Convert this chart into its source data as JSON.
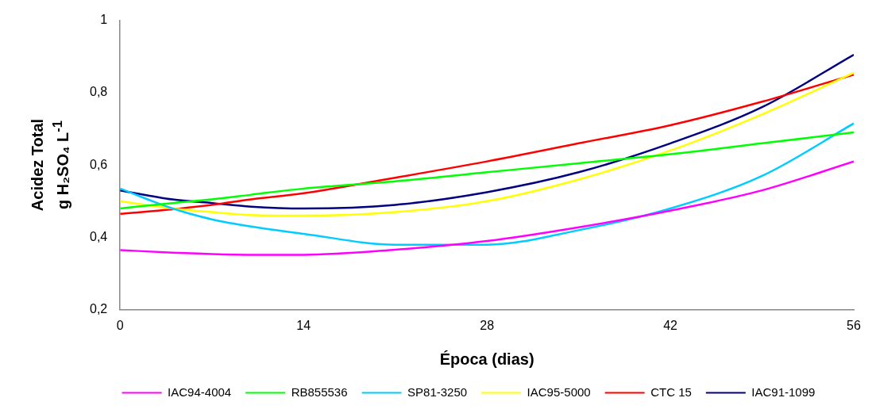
{
  "chart_data": {
    "type": "line",
    "xlabel": "Época (dias)",
    "ylabel": "Acidez Total\ng H₂SO₄ L$^{-1}$",
    "x": [
      0,
      4,
      7,
      10,
      14,
      21,
      28,
      35,
      42,
      49,
      56
    ],
    "series": [
      {
        "name": "IAC94-4004",
        "color": "#ff00ff",
        "values": [
          0.365,
          0.358,
          0.354,
          0.352,
          0.352,
          0.366,
          0.39,
          0.428,
          0.474,
          0.53,
          0.61
        ]
      },
      {
        "name": "RB855536",
        "color": "#00ff00",
        "values": [
          0.48,
          0.495,
          0.505,
          0.518,
          0.535,
          0.555,
          0.58,
          0.605,
          0.63,
          0.66,
          0.69
        ]
      },
      {
        "name": "SP81-3250",
        "color": "#00ccff",
        "values": [
          0.535,
          0.48,
          0.45,
          0.43,
          0.41,
          0.38,
          0.38,
          0.42,
          0.48,
          0.57,
          0.715
        ]
      },
      {
        "name": "IAC95-5000",
        "color": "#ffff00",
        "values": [
          0.5,
          0.48,
          0.47,
          0.462,
          0.46,
          0.47,
          0.5,
          0.56,
          0.64,
          0.74,
          0.855
        ]
      },
      {
        "name": "CTC 15",
        "color": "#ff0000",
        "values": [
          0.465,
          0.478,
          0.49,
          0.505,
          0.522,
          0.565,
          0.61,
          0.66,
          0.71,
          0.775,
          0.85
        ]
      },
      {
        "name": "IAC91-1099",
        "color": "#000080",
        "values": [
          0.53,
          0.505,
          0.495,
          0.485,
          0.48,
          0.49,
          0.525,
          0.58,
          0.66,
          0.76,
          0.905
        ]
      }
    ],
    "xlim": [
      0,
      56
    ],
    "xticks": [
      0,
      14,
      28,
      42,
      56
    ],
    "ylim": [
      0.2,
      1
    ],
    "yticks": [
      {
        "value": 0.2,
        "label": "0,2"
      },
      {
        "value": 0.4,
        "label": "0,4"
      },
      {
        "value": 0.6,
        "label": "0,6"
      },
      {
        "value": 0.8,
        "label": "0,8"
      },
      1
    ],
    "grid": false,
    "legend": "bottom",
    "marker": "none",
    "line_style": "solid"
  }
}
